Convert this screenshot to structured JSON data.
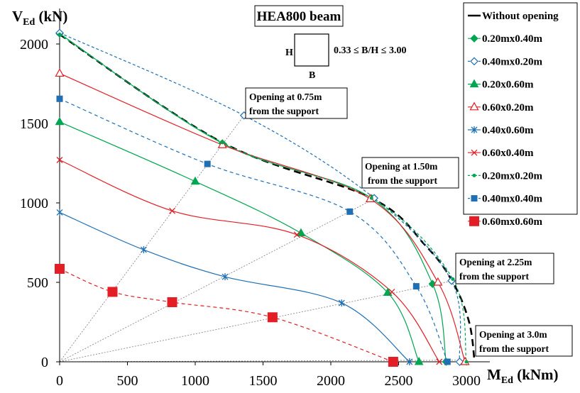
{
  "chart_data": {
    "type": "line",
    "title": "HEA800 beam",
    "xlabel_main": "M",
    "xlabel_sub": "Ed",
    "xlabel_unit": " (kNm)",
    "ylabel_main": "V",
    "ylabel_sub": "Ed",
    "ylabel_unit": " (kN)",
    "xlim": [
      0,
      3100
    ],
    "ylim": [
      0,
      2150
    ],
    "xticks": [
      0,
      500,
      1000,
      1500,
      2000,
      2500,
      3000
    ],
    "yticks": [
      0,
      500,
      1000,
      1500,
      2000
    ],
    "inset": {
      "h_label": "H",
      "b_label": "B",
      "ratio_label": "0.33 ≤ B/H ≤ 3.00"
    },
    "annotations": [
      {
        "line1": "Opening at 0.75m",
        "line2": "from the support"
      },
      {
        "line1": "Opening at 1.50m",
        "line2": "from the support"
      },
      {
        "line1": "Opening at 2.25m",
        "line2": "from the support"
      },
      {
        "line1": "Opening at 3.0m",
        "line2": "from the support"
      }
    ],
    "legend_position": "top-right",
    "series": [
      {
        "name": "Without opening",
        "color": "#000000",
        "dash": "10,6",
        "width": 2.6,
        "marker": "none",
        "x": [
          0,
          1200,
          2300,
          2700,
          2900,
          3020,
          3060
        ],
        "y": [
          2060,
          1380,
          1030,
          730,
          500,
          250,
          0
        ]
      },
      {
        "name": "0.20mx0.40m",
        "color": "#00A651",
        "dash": "",
        "width": 1.2,
        "marker": "diamond-filled",
        "x": [
          0,
          1200,
          2300,
          2750,
          2850
        ],
        "y": [
          2065,
          1375,
          1030,
          490,
          0
        ]
      },
      {
        "name": "0.40mx0.20m",
        "color": "#1F6FB5",
        "dash": "4,3",
        "width": 1.2,
        "marker": "diamond-open",
        "x": [
          0,
          1360,
          2320,
          2890,
          2950
        ],
        "y": [
          2070,
          1550,
          1030,
          510,
          0
        ]
      },
      {
        "name": "0.20x0.60m",
        "color": "#00A651",
        "dash": "",
        "width": 1.2,
        "marker": "triangle-filled",
        "x": [
          0,
          1000,
          1780,
          2420,
          2650
        ],
        "y": [
          1510,
          1135,
          810,
          435,
          0
        ]
      },
      {
        "name": "0.60x0.20m",
        "color": "#E31E24",
        "dash": "",
        "width": 1.2,
        "marker": "triangle-open",
        "x": [
          0,
          1200,
          2290,
          2790,
          2990
        ],
        "y": [
          1815,
          1365,
          1025,
          500,
          0
        ]
      },
      {
        "name": "0.40x0.60m",
        "color": "#1F6FB5",
        "dash": "",
        "width": 1.2,
        "marker": "star",
        "x": [
          0,
          620,
          1220,
          2080,
          2580
        ],
        "y": [
          940,
          705,
          535,
          370,
          0
        ]
      },
      {
        "name": "0.60x0.40m",
        "color": "#E31E24",
        "dash": "",
        "width": 1.2,
        "marker": "x",
        "x": [
          0,
          830,
          1750,
          2450,
          2800
        ],
        "y": [
          1270,
          950,
          800,
          440,
          0
        ]
      },
      {
        "name": "0.20mx0.20m",
        "color": "#00A651",
        "dash": "4,3",
        "width": 1.2,
        "marker": "circle-filled",
        "x": [
          0,
          1200,
          2300,
          2900,
          3000
        ],
        "y": [
          2060,
          1380,
          1030,
          520,
          0
        ]
      },
      {
        "name": "0.40mx0.40m",
        "color": "#1F6FB5",
        "dash": "5,4",
        "width": 1.2,
        "marker": "square-small",
        "x": [
          0,
          1090,
          2140,
          2630,
          2860
        ],
        "y": [
          1655,
          1245,
          945,
          475,
          0
        ]
      },
      {
        "name": "0.60mx0.60m",
        "color": "#E31E24",
        "dash": "5,4",
        "width": 1.2,
        "marker": "square-large",
        "x": [
          0,
          390,
          830,
          1570,
          2460
        ],
        "y": [
          585,
          440,
          375,
          280,
          0
        ]
      }
    ],
    "guide_lines_end": [
      {
        "x": 1360,
        "y": 1550
      },
      {
        "x": 2330,
        "y": 1030
      },
      {
        "x": 2900,
        "y": 510
      },
      {
        "x": 3000,
        "y": 10
      }
    ]
  }
}
